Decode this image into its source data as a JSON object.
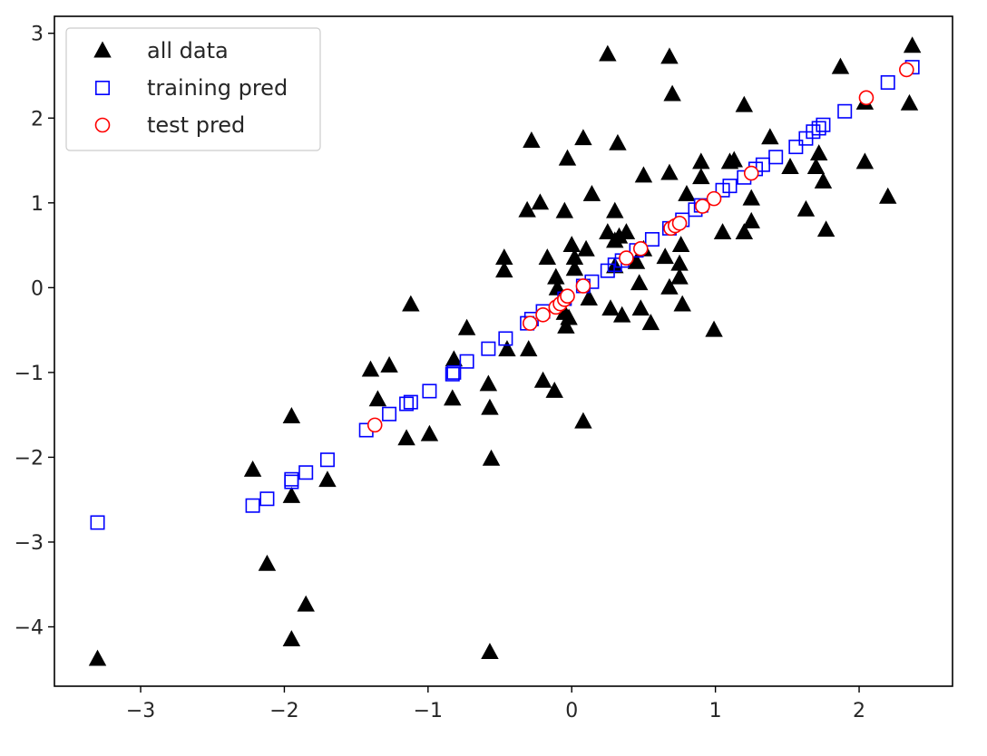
{
  "chart_data": {
    "type": "scatter",
    "title": "",
    "xlabel": "",
    "ylabel": "",
    "xlim": [
      -3.6,
      2.65
    ],
    "ylim": [
      -4.7,
      3.2
    ],
    "xticks": [
      -3,
      -2,
      -1,
      0,
      1,
      2
    ],
    "yticks": [
      -4,
      -3,
      -2,
      -1,
      0,
      1,
      2,
      3
    ],
    "grid": false,
    "legend_position": "upper-left",
    "series": [
      {
        "name": "all data",
        "marker": "triangle",
        "color": "#000000",
        "filled": true,
        "points": [
          [
            -3.3,
            -4.38
          ],
          [
            -2.22,
            -2.15
          ],
          [
            -2.12,
            -3.26
          ],
          [
            -1.95,
            -1.52
          ],
          [
            -1.95,
            -2.46
          ],
          [
            -1.95,
            -4.15
          ],
          [
            -1.85,
            -3.74
          ],
          [
            -1.7,
            -2.27
          ],
          [
            -1.4,
            -0.97
          ],
          [
            -1.35,
            -1.32
          ],
          [
            -1.27,
            -0.92
          ],
          [
            -1.15,
            -1.78
          ],
          [
            -1.12,
            -0.2
          ],
          [
            -0.99,
            -1.73
          ],
          [
            -0.83,
            -1.31
          ],
          [
            -0.82,
            -0.85
          ],
          [
            -0.73,
            -0.48
          ],
          [
            -0.58,
            -1.14
          ],
          [
            -0.57,
            -1.42
          ],
          [
            -0.56,
            -2.02
          ],
          [
            -0.57,
            -4.3
          ],
          [
            -0.47,
            0.35
          ],
          [
            -0.47,
            0.2
          ],
          [
            -0.45,
            -0.73
          ],
          [
            -0.31,
            0.91
          ],
          [
            -0.3,
            -0.73
          ],
          [
            -0.28,
            1.73
          ],
          [
            -0.22,
            1.0
          ],
          [
            -0.2,
            -1.1
          ],
          [
            -0.17,
            0.35
          ],
          [
            -0.12,
            -1.22
          ],
          [
            -0.11,
            0.12
          ],
          [
            -0.1,
            -0.01
          ],
          [
            -0.05,
            0.9
          ],
          [
            -0.05,
            -0.3
          ],
          [
            -0.04,
            -0.46
          ],
          [
            -0.02,
            -0.36
          ],
          [
            -0.03,
            1.52
          ],
          [
            0.0,
            0.5
          ],
          [
            0.02,
            0.35
          ],
          [
            0.02,
            0.22
          ],
          [
            0.08,
            -1.58
          ],
          [
            0.08,
            1.76
          ],
          [
            0.1,
            0.45
          ],
          [
            0.12,
            -0.13
          ],
          [
            0.14,
            1.1
          ],
          [
            0.25,
            2.75
          ],
          [
            0.25,
            0.65
          ],
          [
            0.27,
            -0.25
          ],
          [
            0.3,
            0.9
          ],
          [
            0.3,
            0.55
          ],
          [
            0.3,
            0.25
          ],
          [
            0.32,
            1.7
          ],
          [
            0.33,
            0.6
          ],
          [
            0.35,
            -0.33
          ],
          [
            0.38,
            0.65
          ],
          [
            0.45,
            0.3
          ],
          [
            0.47,
            0.05
          ],
          [
            0.48,
            -0.25
          ],
          [
            0.5,
            0.45
          ],
          [
            0.5,
            1.32
          ],
          [
            0.55,
            -0.42
          ],
          [
            0.65,
            0.36
          ],
          [
            0.68,
            2.72
          ],
          [
            0.68,
            0.0
          ],
          [
            0.68,
            1.35
          ],
          [
            0.7,
            2.28
          ],
          [
            0.75,
            0.28
          ],
          [
            0.75,
            0.12
          ],
          [
            0.76,
            0.5
          ],
          [
            0.77,
            -0.2
          ],
          [
            0.8,
            1.1
          ],
          [
            0.9,
            1.3
          ],
          [
            0.9,
            1.48
          ],
          [
            0.99,
            -0.5
          ],
          [
            1.05,
            0.65
          ],
          [
            1.1,
            1.48
          ],
          [
            1.13,
            1.5
          ],
          [
            1.2,
            0.65
          ],
          [
            1.2,
            2.15
          ],
          [
            1.25,
            1.05
          ],
          [
            1.25,
            0.78
          ],
          [
            1.38,
            1.77
          ],
          [
            1.52,
            1.42
          ],
          [
            1.63,
            0.92
          ],
          [
            1.7,
            1.42
          ],
          [
            1.72,
            1.58
          ],
          [
            1.75,
            1.25
          ],
          [
            1.77,
            0.68
          ],
          [
            1.87,
            2.6
          ],
          [
            2.04,
            2.18
          ],
          [
            2.04,
            1.48
          ],
          [
            2.2,
            1.07
          ],
          [
            2.35,
            2.17
          ],
          [
            2.37,
            2.85
          ]
        ]
      },
      {
        "name": "training pred",
        "marker": "square",
        "color": "#0000ff",
        "filled": false,
        "points": [
          [
            -3.3,
            -2.77
          ],
          [
            -2.22,
            -2.57
          ],
          [
            -2.12,
            -2.49
          ],
          [
            -1.95,
            -2.29
          ],
          [
            -1.95,
            -2.26
          ],
          [
            -1.85,
            -2.18
          ],
          [
            -1.7,
            -2.03
          ],
          [
            -1.43,
            -1.68
          ],
          [
            -1.27,
            -1.49
          ],
          [
            -1.15,
            -1.37
          ],
          [
            -1.12,
            -1.35
          ],
          [
            -0.99,
            -1.22
          ],
          [
            -0.83,
            -1.02
          ],
          [
            -0.82,
            -1.0
          ],
          [
            -0.73,
            -0.87
          ],
          [
            -0.58,
            -0.72
          ],
          [
            -0.46,
            -0.6
          ],
          [
            -0.31,
            -0.42
          ],
          [
            -0.28,
            -0.37
          ],
          [
            -0.2,
            -0.28
          ],
          [
            -0.05,
            -0.13
          ],
          [
            0.08,
            0.02
          ],
          [
            0.14,
            0.07
          ],
          [
            0.25,
            0.2
          ],
          [
            0.3,
            0.27
          ],
          [
            0.35,
            0.32
          ],
          [
            0.45,
            0.44
          ],
          [
            0.56,
            0.57
          ],
          [
            0.68,
            0.7
          ],
          [
            0.77,
            0.8
          ],
          [
            0.86,
            0.92
          ],
          [
            0.9,
            0.97
          ],
          [
            1.05,
            1.15
          ],
          [
            1.1,
            1.2
          ],
          [
            1.2,
            1.3
          ],
          [
            1.28,
            1.4
          ],
          [
            1.33,
            1.45
          ],
          [
            1.42,
            1.54
          ],
          [
            1.56,
            1.66
          ],
          [
            1.63,
            1.76
          ],
          [
            1.68,
            1.84
          ],
          [
            1.72,
            1.88
          ],
          [
            1.75,
            1.92
          ],
          [
            1.9,
            2.08
          ],
          [
            2.2,
            2.42
          ],
          [
            2.37,
            2.6
          ]
        ]
      },
      {
        "name": "test pred",
        "marker": "circle",
        "color": "#ff0000",
        "filled": false,
        "points": [
          [
            -1.37,
            -1.62
          ],
          [
            -0.29,
            -0.42
          ],
          [
            -0.2,
            -0.32
          ],
          [
            -0.11,
            -0.23
          ],
          [
            -0.08,
            -0.19
          ],
          [
            -0.05,
            -0.14
          ],
          [
            -0.03,
            -0.1
          ],
          [
            0.08,
            0.02
          ],
          [
            0.38,
            0.35
          ],
          [
            0.48,
            0.46
          ],
          [
            0.69,
            0.7
          ],
          [
            0.72,
            0.73
          ],
          [
            0.75,
            0.76
          ],
          [
            0.91,
            0.96
          ],
          [
            0.99,
            1.05
          ],
          [
            1.25,
            1.35
          ],
          [
            2.05,
            2.24
          ],
          [
            2.33,
            2.57
          ]
        ]
      }
    ]
  }
}
